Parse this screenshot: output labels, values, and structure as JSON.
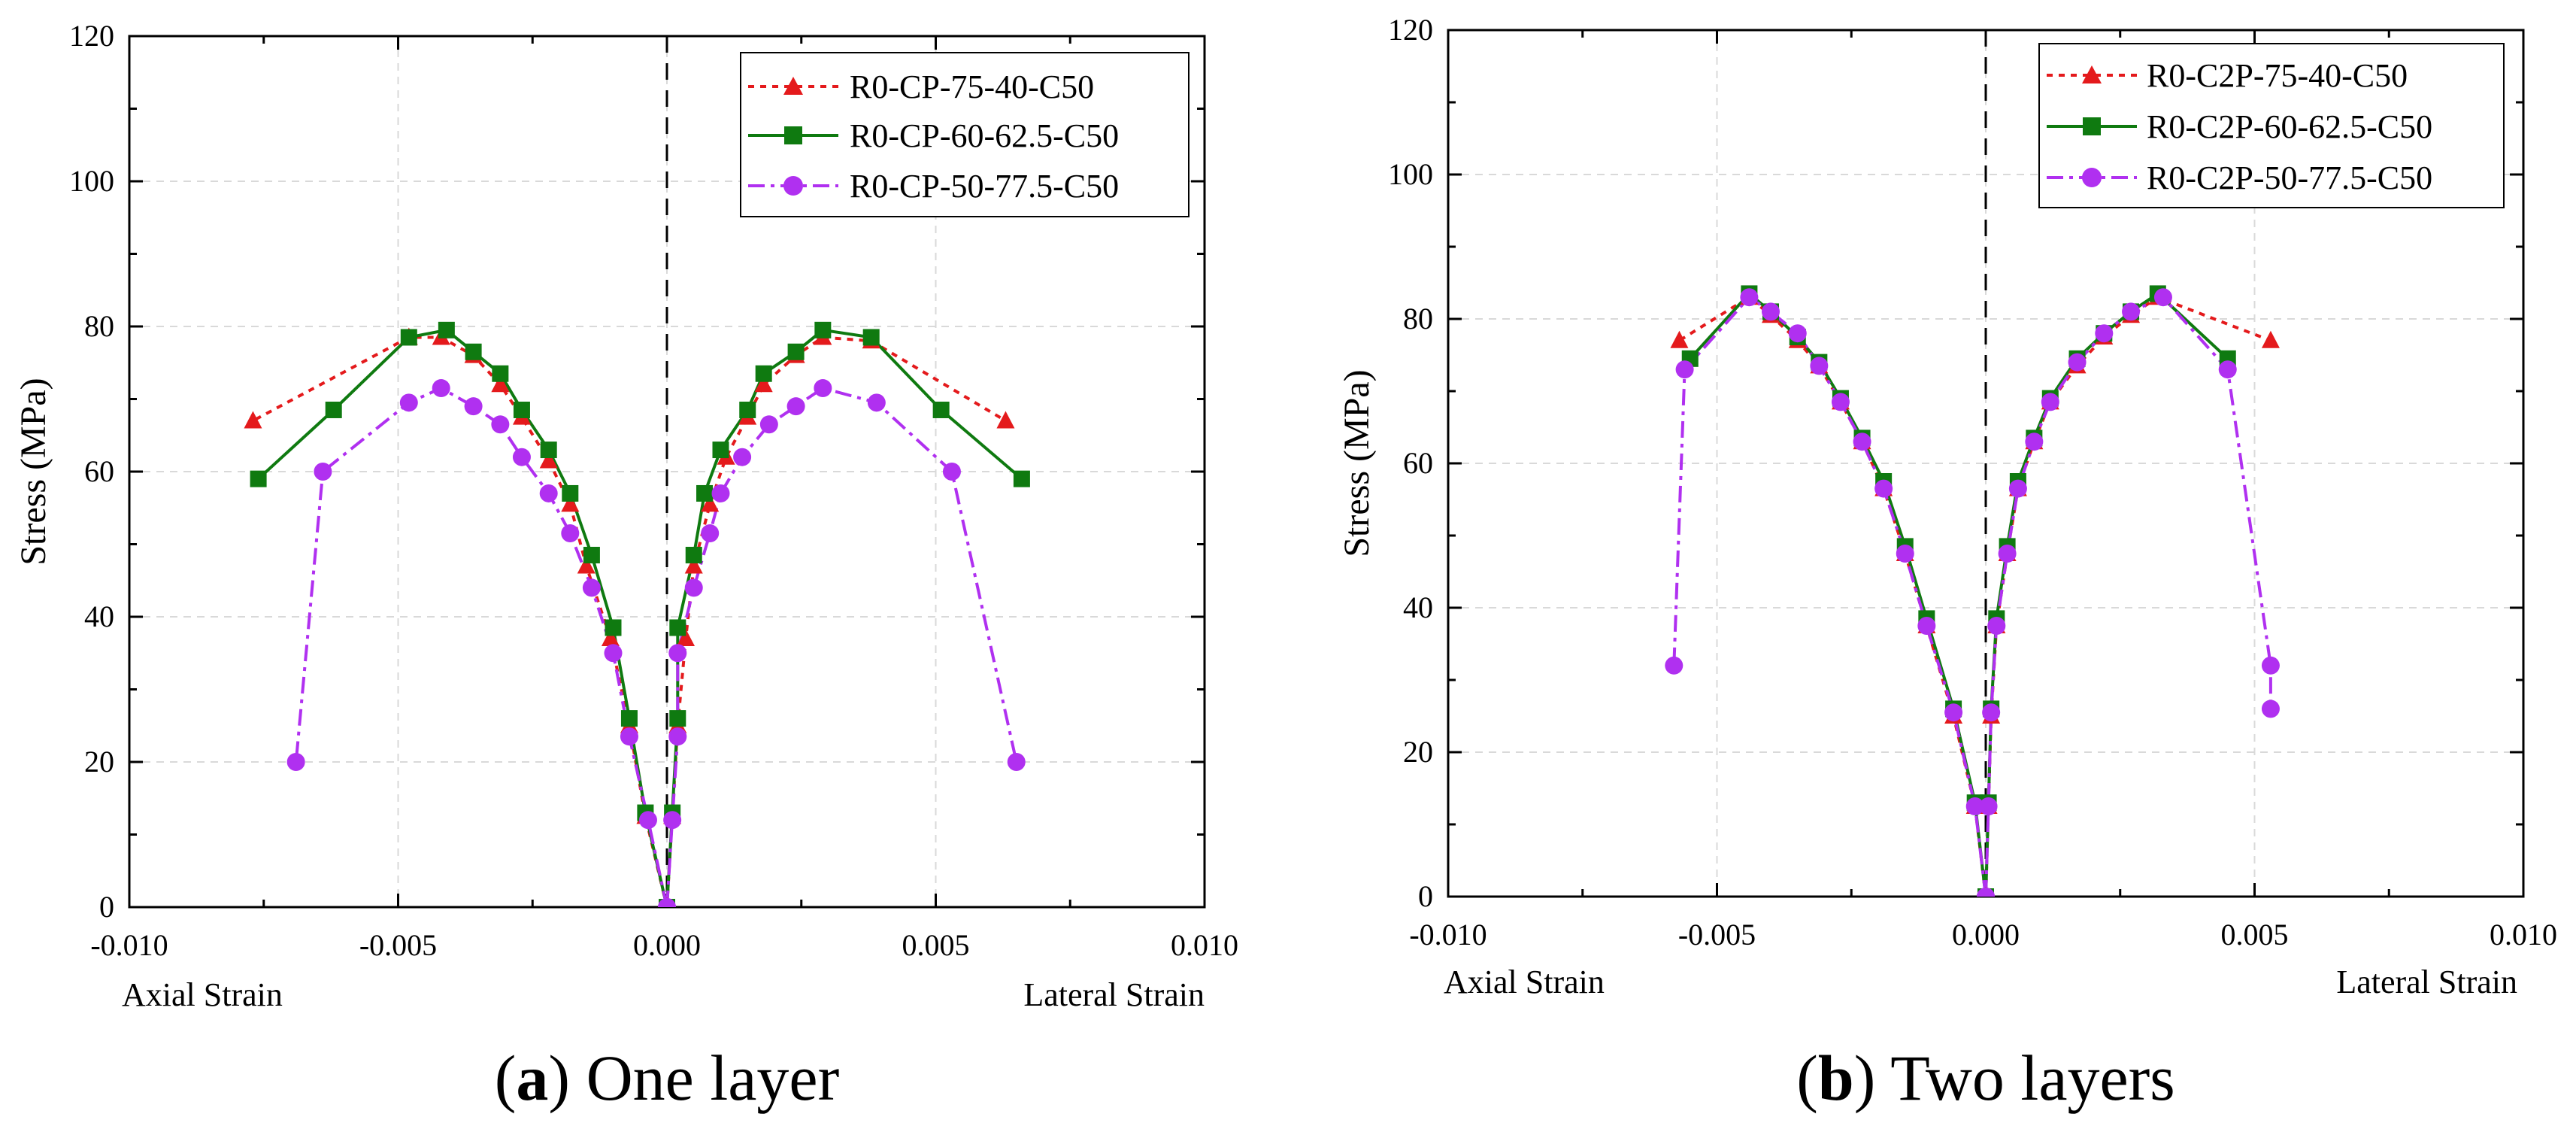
{
  "chart_data": [
    {
      "type": "line",
      "panel": "a",
      "title": "One layer",
      "caption_letter": "a",
      "xlabel_left": "Axial Strain",
      "xlabel_right": "Lateral Strain",
      "ylabel": "Stress (MPa)",
      "xlim": [
        -0.01,
        0.01
      ],
      "ylim": [
        0,
        120
      ],
      "xticks": [
        "-0.010",
        "-0.005",
        "0.000",
        "0.005",
        "0.010"
      ],
      "yticks": [
        "0",
        "20",
        "40",
        "60",
        "80",
        "100",
        "120"
      ],
      "grid": true,
      "legend_position": "top-right",
      "series": [
        {
          "name": "R0-CP-75-40-C50",
          "color": "#e41a1c",
          "marker": "triangle",
          "line_style": "dotted",
          "axial": [
            [
              0.0,
              0
            ],
            [
              -0.0004,
              12.5
            ],
            [
              -0.0007,
              25
            ],
            [
              -0.00105,
              37
            ],
            [
              -0.0015,
              47
            ],
            [
              -0.0018,
              55.5
            ],
            [
              -0.0022,
              61.5
            ],
            [
              -0.0027,
              67.5
            ],
            [
              -0.0031,
              72
            ],
            [
              -0.0036,
              76
            ],
            [
              -0.0042,
              78.5
            ],
            [
              -0.0048,
              78.5
            ],
            [
              -0.0077,
              67
            ]
          ],
          "lateral": [
            [
              0.0,
              0
            ],
            [
              0.0001,
              12.5
            ],
            [
              0.0002,
              25
            ],
            [
              0.00035,
              37
            ],
            [
              0.0005,
              47
            ],
            [
              0.0008,
              55.5
            ],
            [
              0.0011,
              62
            ],
            [
              0.0015,
              67.5
            ],
            [
              0.0018,
              72
            ],
            [
              0.0024,
              76
            ],
            [
              0.0029,
              78.5
            ],
            [
              0.0038,
              78
            ],
            [
              0.0063,
              67
            ]
          ]
        },
        {
          "name": "R0-CP-60-62.5-C50",
          "color": "#0f7a10",
          "marker": "square",
          "line_style": "solid",
          "axial": [
            [
              0.0,
              0
            ],
            [
              -0.0004,
              13
            ],
            [
              -0.0007,
              26
            ],
            [
              -0.001,
              38.5
            ],
            [
              -0.0014,
              48.5
            ],
            [
              -0.0018,
              57
            ],
            [
              -0.0022,
              63
            ],
            [
              -0.0027,
              68.5
            ],
            [
              -0.0031,
              73.5
            ],
            [
              -0.0036,
              76.5
            ],
            [
              -0.0041,
              79.5
            ],
            [
              -0.0048,
              78.5
            ],
            [
              -0.0062,
              68.5
            ],
            [
              -0.0076,
              59
            ]
          ],
          "lateral": [
            [
              0.0,
              0
            ],
            [
              0.0001,
              13
            ],
            [
              0.0002,
              26
            ],
            [
              0.0002,
              38.5
            ],
            [
              0.0005,
              48.5
            ],
            [
              0.0007,
              57
            ],
            [
              0.001,
              63
            ],
            [
              0.0015,
              68.5
            ],
            [
              0.0018,
              73.5
            ],
            [
              0.0024,
              76.5
            ],
            [
              0.0029,
              79.5
            ],
            [
              0.0038,
              78.5
            ],
            [
              0.0051,
              68.5
            ],
            [
              0.0066,
              59
            ]
          ]
        },
        {
          "name": "R0-CP-50-77.5-C50",
          "color": "#b030f0",
          "marker": "circle",
          "line_style": "dash-dot",
          "axial": [
            [
              0.0,
              0
            ],
            [
              -0.00035,
              12
            ],
            [
              -0.0007,
              23.5
            ],
            [
              -0.001,
              35
            ],
            [
              -0.0014,
              44
            ],
            [
              -0.0018,
              51.5
            ],
            [
              -0.0022,
              57
            ],
            [
              -0.0027,
              62
            ],
            [
              -0.0031,
              66.5
            ],
            [
              -0.0036,
              69
            ],
            [
              -0.0042,
              71.5
            ],
            [
              -0.0048,
              69.5
            ],
            [
              -0.0064,
              60
            ],
            [
              -0.0069,
              20
            ]
          ],
          "lateral": [
            [
              0.0,
              0
            ],
            [
              0.0001,
              12
            ],
            [
              0.0002,
              23.5
            ],
            [
              0.0002,
              35
            ],
            [
              0.0005,
              44
            ],
            [
              0.0008,
              51.5
            ],
            [
              0.001,
              57
            ],
            [
              0.0014,
              62
            ],
            [
              0.0019,
              66.5
            ],
            [
              0.0024,
              69
            ],
            [
              0.0029,
              71.5
            ],
            [
              0.0039,
              69.5
            ],
            [
              0.0053,
              60
            ],
            [
              0.0065,
              20
            ]
          ]
        }
      ]
    },
    {
      "type": "line",
      "panel": "b",
      "title": "Two layers",
      "caption_letter": "b",
      "xlabel_left": "Axial Strain",
      "xlabel_right": "Lateral Strain",
      "ylabel": "Stress (MPa)",
      "xlim": [
        -0.01,
        0.01
      ],
      "ylim": [
        0,
        120
      ],
      "xticks": [
        "-0.010",
        "-0.005",
        "0.000",
        "0.005",
        "0.010"
      ],
      "yticks": [
        "0",
        "20",
        "40",
        "60",
        "80",
        "100",
        "120"
      ],
      "grid": true,
      "legend_position": "top-right",
      "series": [
        {
          "name": "R0-C2P-75-40-C50",
          "color": "#e41a1c",
          "marker": "triangle",
          "line_style": "dotted",
          "axial": [
            [
              0.0,
              0
            ],
            [
              -0.0002,
              12.5
            ],
            [
              -0.0006,
              25
            ],
            [
              -0.0011,
              37.5
            ],
            [
              -0.0015,
              47.5
            ],
            [
              -0.0019,
              56.5
            ],
            [
              -0.0023,
              63
            ],
            [
              -0.0027,
              68.5
            ],
            [
              -0.0031,
              73.5
            ],
            [
              -0.0035,
              77
            ],
            [
              -0.004,
              80.5
            ],
            [
              -0.0044,
              83
            ],
            [
              -0.0057,
              77
            ]
          ],
          "lateral": [
            [
              0.0,
              0
            ],
            [
              5e-05,
              12.5
            ],
            [
              0.0001,
              25
            ],
            [
              0.0002,
              37.5
            ],
            [
              0.0004,
              47.5
            ],
            [
              0.0006,
              56.5
            ],
            [
              0.0009,
              63
            ],
            [
              0.0012,
              68.5
            ],
            [
              0.0017,
              73.5
            ],
            [
              0.0022,
              77.5
            ],
            [
              0.0027,
              80.5
            ],
            [
              0.0032,
              83
            ],
            [
              0.0053,
              77
            ]
          ]
        },
        {
          "name": "R0-C2P-60-62.5-C50",
          "color": "#0f7a10",
          "marker": "square",
          "line_style": "solid",
          "axial": [
            [
              0.0,
              0
            ],
            [
              -0.0002,
              13
            ],
            [
              -0.0006,
              26
            ],
            [
              -0.0011,
              38.5
            ],
            [
              -0.0015,
              48.5
            ],
            [
              -0.0019,
              57.5
            ],
            [
              -0.0023,
              63.5
            ],
            [
              -0.0027,
              69
            ],
            [
              -0.0031,
              74
            ],
            [
              -0.0035,
              77.5
            ],
            [
              -0.004,
              81
            ],
            [
              -0.0044,
              83.5
            ],
            [
              -0.0055,
              74.5
            ]
          ],
          "lateral": [
            [
              0.0,
              0
            ],
            [
              5e-05,
              13
            ],
            [
              0.0001,
              26
            ],
            [
              0.0002,
              38.5
            ],
            [
              0.0004,
              48.5
            ],
            [
              0.0006,
              57.5
            ],
            [
              0.0009,
              63.5
            ],
            [
              0.0012,
              69
            ],
            [
              0.0017,
              74.5
            ],
            [
              0.0022,
              78
            ],
            [
              0.0027,
              81
            ],
            [
              0.0032,
              83.5
            ],
            [
              0.0045,
              74.5
            ]
          ]
        },
        {
          "name": "R0-C2P-50-77.5-C50",
          "color": "#b030f0",
          "marker": "circle",
          "line_style": "dash-dot",
          "axial": [
            [
              0.0,
              0
            ],
            [
              -0.0002,
              12.5
            ],
            [
              -0.0006,
              25.5
            ],
            [
              -0.0011,
              37.5
            ],
            [
              -0.0015,
              47.5
            ],
            [
              -0.0019,
              56.5
            ],
            [
              -0.0023,
              63
            ],
            [
              -0.0027,
              68.5
            ],
            [
              -0.0031,
              73.5
            ],
            [
              -0.0035,
              78
            ],
            [
              -0.004,
              81
            ],
            [
              -0.0044,
              83
            ],
            [
              -0.0056,
              73
            ],
            [
              -0.0058,
              32
            ]
          ],
          "lateral": [
            [
              0.0,
              0
            ],
            [
              5e-05,
              12.5
            ],
            [
              0.0001,
              25.5
            ],
            [
              0.0002,
              37.5
            ],
            [
              0.0004,
              47.5
            ],
            [
              0.0006,
              56.5
            ],
            [
              0.0009,
              63
            ],
            [
              0.0012,
              68.5
            ],
            [
              0.0017,
              74
            ],
            [
              0.0022,
              78
            ],
            [
              0.0027,
              81
            ],
            [
              0.0033,
              83
            ],
            [
              0.0045,
              73
            ],
            [
              0.0053,
              32
            ],
            [
              0.0053,
              26
            ]
          ]
        }
      ]
    }
  ]
}
